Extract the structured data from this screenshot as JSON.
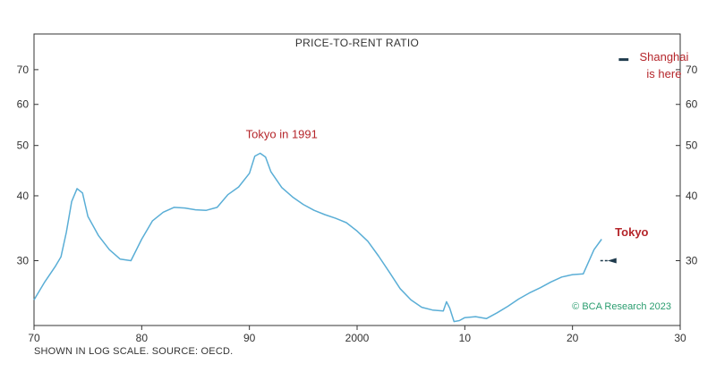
{
  "chart_data": {
    "type": "line",
    "title": "PRICE-TO-RENT RATIO",
    "footnote": "SHOWN IN LOG SCALE. SOURCE: OECD.",
    "credit": "© BCA Research 2023",
    "y_scale": "log",
    "ylim": [
      22.5,
      82
    ],
    "xlim": [
      1970,
      2030
    ],
    "x_ticks": [
      {
        "value": 1970,
        "label": "70"
      },
      {
        "value": 1980,
        "label": "80"
      },
      {
        "value": 1990,
        "label": "90"
      },
      {
        "value": 2000,
        "label": "2000"
      },
      {
        "value": 2010,
        "label": "10"
      },
      {
        "value": 2020,
        "label": "20"
      },
      {
        "value": 2030,
        "label": "30"
      }
    ],
    "y_ticks": [
      {
        "value": 30,
        "label": "30"
      },
      {
        "value": 40,
        "label": "40"
      },
      {
        "value": 50,
        "label": "50"
      },
      {
        "value": 60,
        "label": "60"
      },
      {
        "value": 70,
        "label": "70"
      }
    ],
    "grid": false,
    "line_color": "#5aaed6",
    "accent_color": "#b5262b",
    "series": [
      {
        "name": "Tokyo",
        "x": [
          1970,
          1971,
          1972,
          1972.5,
          1973,
          1973.5,
          1974,
          1974.5,
          1975,
          1976,
          1977,
          1978,
          1979,
          1980,
          1981,
          1982,
          1983,
          1984,
          1985,
          1986,
          1987,
          1988,
          1989,
          1990,
          1990.5,
          1991,
          1991.5,
          1992,
          1993,
          1994,
          1995,
          1996,
          1997,
          1998,
          1999,
          2000,
          2001,
          2002,
          2003,
          2004,
          2005,
          2006,
          2007,
          2008,
          2008.3,
          2008.6,
          2009,
          2009.5,
          2010,
          2011,
          2012,
          2013,
          2014,
          2015,
          2016,
          2017,
          2018,
          2019,
          2020,
          2021,
          2022,
          2022.7
        ],
        "values": [
          25.2,
          27.3,
          29.3,
          30.5,
          34.0,
          39.0,
          41.3,
          40.5,
          36.5,
          33.5,
          31.5,
          30.2,
          30.0,
          33.0,
          35.8,
          37.2,
          38.0,
          37.9,
          37.6,
          37.5,
          38.0,
          40.2,
          41.6,
          44.2,
          47.7,
          48.3,
          47.5,
          44.5,
          41.5,
          39.8,
          38.5,
          37.5,
          36.8,
          36.2,
          35.5,
          34.2,
          32.7,
          30.6,
          28.5,
          26.5,
          25.2,
          24.4,
          24.1,
          24.0,
          25.0,
          24.3,
          22.9,
          23.0,
          23.3,
          23.4,
          23.2,
          23.8,
          24.5,
          25.3,
          26.0,
          26.6,
          27.3,
          27.9,
          28.2,
          28.3,
          31.5,
          33.0
        ]
      },
      {
        "name": "Shanghai",
        "x": [
          2024.3,
          2025.2
        ],
        "values": [
          73.2,
          73.2
        ]
      }
    ],
    "annotations": [
      {
        "text": "Tokyo in 1991",
        "x": 1993,
        "y": 52.5,
        "bold": false
      },
      {
        "text": "Tokyo",
        "x": 2025.5,
        "y": 34.0,
        "bold": true
      },
      {
        "text": "Shanghai",
        "x": 2028.5,
        "y": 74.0,
        "bold": false
      },
      {
        "text": "is here",
        "x": 2028.5,
        "y": 68.6,
        "bold": false
      }
    ],
    "tokyo_marker": {
      "x": 2023.5,
      "y": 30.0
    }
  }
}
